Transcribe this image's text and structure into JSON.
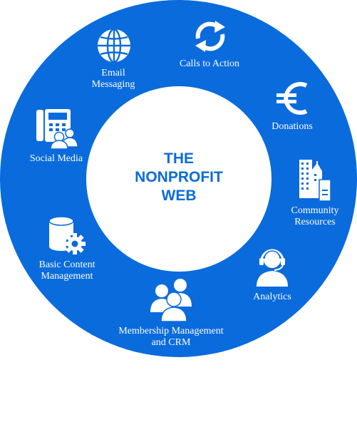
{
  "hub": {
    "title": "THE\nNONPROFIT\nWEB"
  },
  "colors": {
    "ring": "#0a6bdc",
    "hub": "#ffffff",
    "icon": "#ffffff",
    "hub_text": "#0a6bdc"
  },
  "segments": [
    {
      "label": "Email\nMessaging",
      "icon": "globe-icon"
    },
    {
      "label": "Calls to Action",
      "icon": "refresh-arrows-icon"
    },
    {
      "label": "Donations",
      "icon": "euro-icon"
    },
    {
      "label": "Community\nResources",
      "icon": "buildings-icon"
    },
    {
      "label": "Analytics",
      "icon": "headset-user-icon"
    },
    {
      "label": "Membership  Management\nand CRM",
      "icon": "user-group-icon"
    },
    {
      "label": "Basic Content\nManagement",
      "icon": "database-gear-icon"
    },
    {
      "label": "Social Media",
      "icon": "phone-users-icon"
    }
  ]
}
